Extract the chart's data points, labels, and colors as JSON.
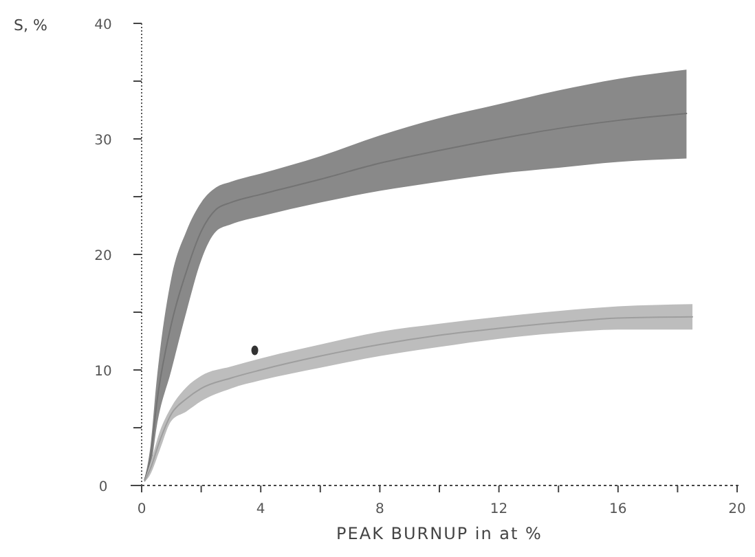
{
  "chart_data": {
    "type": "line",
    "xlabel": "PEAK BURNUP in at %",
    "ylabel": "S, %",
    "xlim": [
      0,
      20
    ],
    "ylim": [
      0,
      40
    ],
    "xticks": [
      0,
      {
        "value": 2,
        "label": null
      },
      4,
      {
        "value": 6,
        "label": null
      },
      8,
      {
        "value": 10,
        "label": null
      },
      12,
      {
        "value": 14,
        "label": null
      },
      16,
      {
        "value": 18,
        "label": null
      },
      20
    ],
    "yticks": [
      0,
      {
        "value": 5,
        "label": null
      },
      10,
      {
        "value": 15,
        "label": null
      },
      20,
      {
        "value": 25,
        "label": null
      },
      30,
      {
        "value": 35,
        "label": null
      },
      40
    ],
    "series": [
      {
        "color": "#737373",
        "x": [
          0.1,
          0.3,
          0.5,
          1,
          1.5,
          2,
          2.5,
          3,
          4,
          6,
          8,
          10,
          12,
          14,
          16,
          18.3
        ],
        "values": [
          0.5,
          2.5,
          7,
          14,
          18.5,
          22,
          23.9,
          24.5,
          25.2,
          26.5,
          27.9,
          29,
          30,
          30.9,
          31.6,
          32.2
        ],
        "lower": [
          0.4,
          1.5,
          5,
          10,
          15,
          19.5,
          22,
          22.6,
          23.3,
          24.5,
          25.5,
          26.3,
          27,
          27.5,
          28,
          28.3
        ],
        "upper": [
          0.6,
          3.5,
          9,
          18,
          22,
          24.5,
          25.8,
          26.3,
          27,
          28.5,
          30.3,
          31.8,
          33,
          34.2,
          35.2,
          36
        ]
      },
      {
        "color": "#9e9e9e",
        "x": [
          0.1,
          0.3,
          0.6,
          1,
          1.5,
          2,
          3,
          4,
          6,
          8,
          10,
          12,
          14,
          16,
          18.5
        ],
        "values": [
          0.4,
          1.5,
          3.8,
          6.2,
          7.5,
          8.4,
          9.3,
          10,
          11.2,
          12.2,
          13,
          13.6,
          14.1,
          14.5,
          14.6
        ],
        "lower": [
          0.3,
          1,
          3,
          5.6,
          6.4,
          7.3,
          8.4,
          9.1,
          10.2,
          11.2,
          12,
          12.7,
          13.2,
          13.5,
          13.5
        ],
        "upper": [
          0.5,
          2,
          4.6,
          6.8,
          8.5,
          9.5,
          10.3,
          11,
          12.2,
          13.3,
          14,
          14.6,
          15.1,
          15.5,
          15.7
        ]
      },
      {
        "type": "scatter",
        "color": "#333333",
        "x": [
          3.8
        ],
        "values": [
          11.7
        ]
      }
    ]
  }
}
